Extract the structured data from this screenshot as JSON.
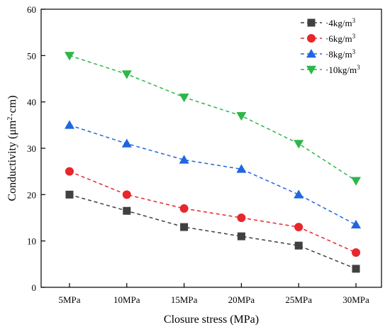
{
  "chart_data": {
    "type": "line",
    "categories": [
      "5MPa",
      "10MPa",
      "15MPa",
      "20MPa",
      "25MPa",
      "30MPa"
    ],
    "xlabel": "Closure stress (MPa)",
    "ylabel_main": "Conductivity (μm",
    "ylabel_sup": "2",
    "ylabel_tail": "·cm)",
    "ylim": [
      0,
      60
    ],
    "yticks": [
      "0",
      "10",
      "20",
      "30",
      "40",
      "50",
      "60"
    ],
    "grid": false,
    "legend_position": "top-right",
    "series": [
      {
        "name": "4kg/m",
        "name_sup": "3",
        "marker": "square",
        "color": "#404040",
        "values": [
          20,
          16.5,
          13,
          11,
          9,
          4
        ]
      },
      {
        "name": "6kg/m",
        "name_sup": "3",
        "marker": "circle",
        "color": "#e8262b",
        "values": [
          25,
          20,
          17,
          15,
          13,
          7.5
        ]
      },
      {
        "name": "8kg/m",
        "name_sup": "3",
        "marker": "triangle-up",
        "color": "#1f66e0",
        "values": [
          35,
          31,
          27.5,
          25.5,
          20,
          13.5
        ]
      },
      {
        "name": "10kg/m",
        "name_sup": "3",
        "marker": "triangle-down",
        "color": "#2fb64b",
        "values": [
          50,
          46,
          41,
          37,
          31,
          23
        ]
      }
    ]
  }
}
